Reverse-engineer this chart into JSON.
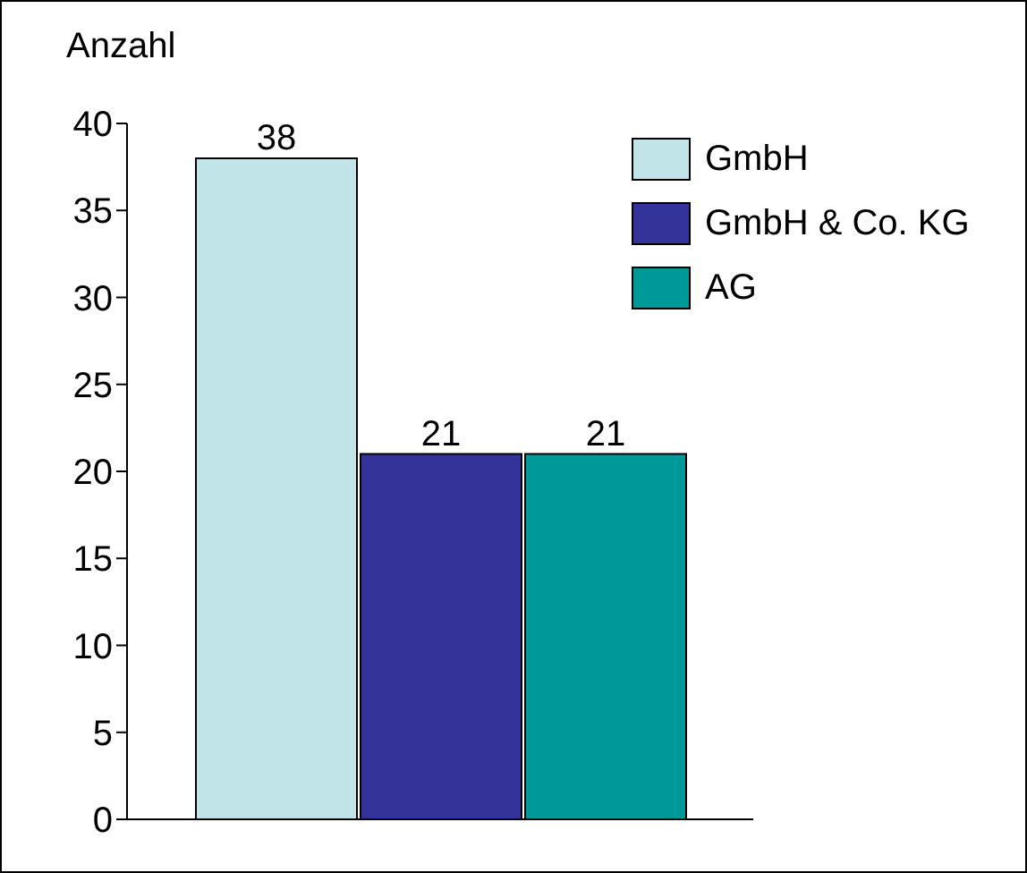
{
  "chart_data": {
    "type": "bar",
    "ylabel": "Anzahl",
    "categories": [
      null
    ],
    "series": [
      {
        "name": "GmbH",
        "color": "#c0e4e8",
        "values": [
          38
        ]
      },
      {
        "name": "GmbH & Co. KG",
        "color": "#333399",
        "values": [
          21
        ]
      },
      {
        "name": "AG",
        "color": "#009999",
        "values": [
          21
        ]
      }
    ],
    "ylim": [
      0,
      40
    ],
    "yticks": [
      0,
      5,
      10,
      15,
      20,
      25,
      30,
      35,
      40
    ],
    "data_labels": true,
    "legend": "top right",
    "grid": false
  }
}
